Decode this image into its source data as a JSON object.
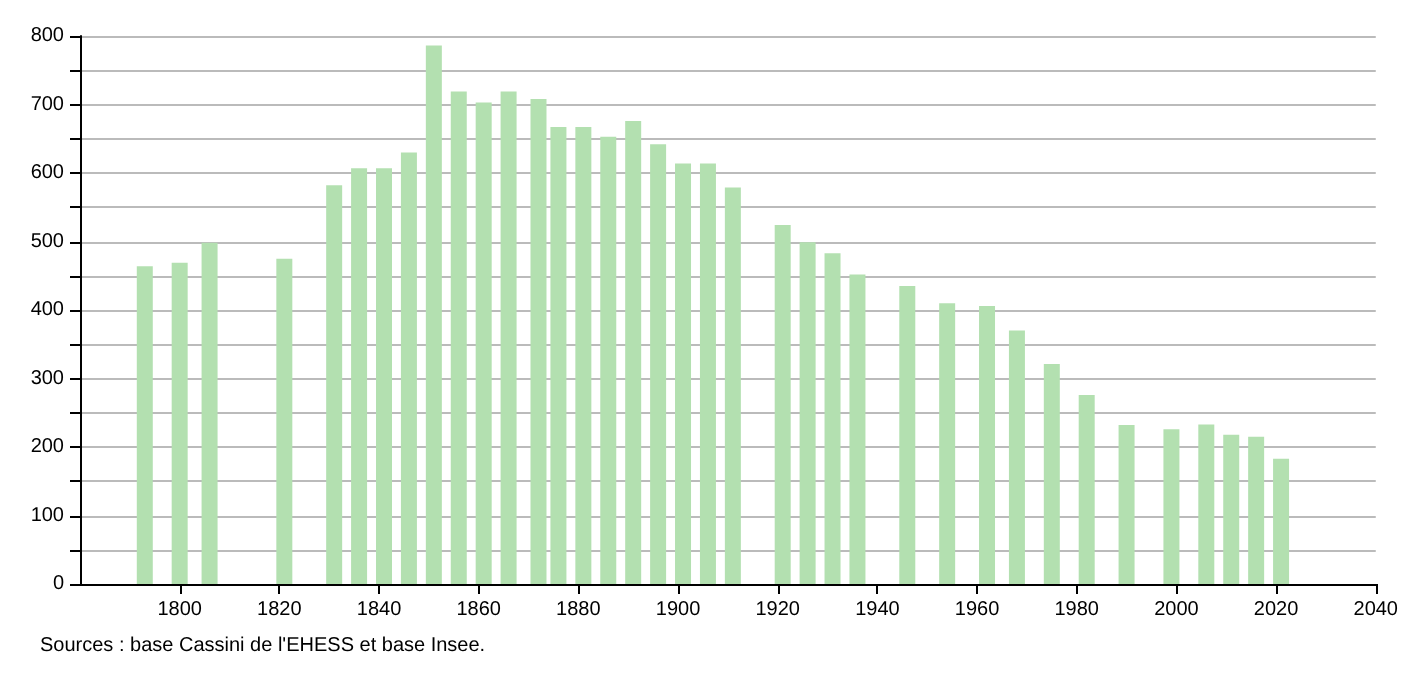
{
  "chart_data": {
    "type": "bar",
    "x": [
      1793,
      1800,
      1806,
      1821,
      1831,
      1836,
      1841,
      1846,
      1851,
      1856,
      1861,
      1866,
      1872,
      1876,
      1881,
      1886,
      1891,
      1896,
      1901,
      1906,
      1911,
      1921,
      1926,
      1931,
      1936,
      1946,
      1954,
      1962,
      1968,
      1975,
      1982,
      1990,
      1999,
      2006,
      2011,
      2016,
      2021
    ],
    "values": [
      464,
      469,
      498,
      475,
      582,
      607,
      607,
      630,
      786,
      719,
      703,
      719,
      708,
      667,
      667,
      653,
      676,
      642,
      614,
      614,
      579,
      524,
      499,
      483,
      452,
      435,
      410,
      406,
      370,
      321,
      276,
      232,
      226,
      233,
      218,
      215,
      183
    ],
    "color": "#b3e0b0",
    "xlim": [
      1780,
      2040
    ],
    "xticks": [
      1800,
      1820,
      1840,
      1860,
      1880,
      1900,
      1920,
      1940,
      1960,
      1980,
      2000,
      2020,
      2040
    ],
    "ylim": [
      0,
      800
    ],
    "yticks": [
      0,
      {
        "value": 50,
        "label": null
      },
      100,
      {
        "value": 150,
        "label": null
      },
      200,
      {
        "value": 250,
        "label": null
      },
      300,
      {
        "value": 350,
        "label": null
      },
      400,
      {
        "value": 450,
        "label": null
      },
      500,
      {
        "value": 550,
        "label": null
      },
      600,
      {
        "value": 650,
        "label": null
      },
      700,
      {
        "value": 750,
        "label": null
      },
      800
    ],
    "grid": "y",
    "annotations": [
      "Sources : base Cassini de l'EHESS et base Insee."
    ]
  }
}
